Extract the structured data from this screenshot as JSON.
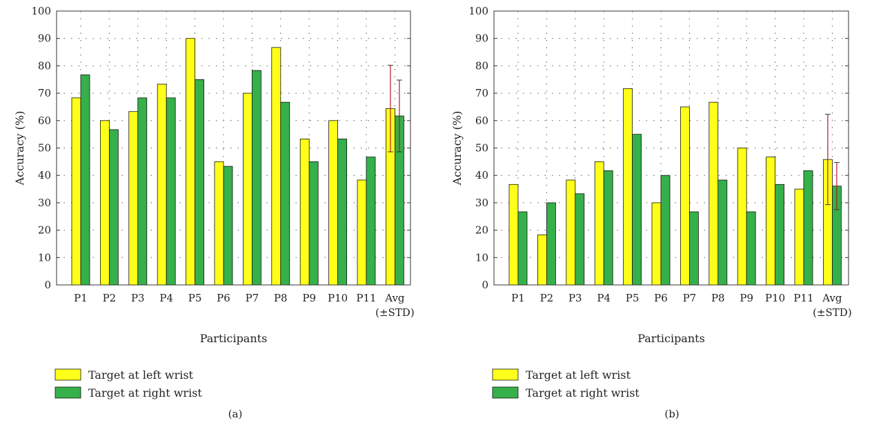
{
  "colors": {
    "left_wrist": "#ffff1a",
    "right_wrist": "#36b04a",
    "bar_stroke": "#111111",
    "error_bar": "#b0182a",
    "grid": "#555555"
  },
  "chart_data": [
    {
      "type": "bar",
      "panel_label": "(a)",
      "xlabel": "Participants",
      "ylabel": "Accuracy (%)",
      "ylim": [
        0,
        100
      ],
      "yticks": [
        0,
        10,
        20,
        30,
        40,
        50,
        60,
        70,
        80,
        90,
        100
      ],
      "grid": true,
      "grid_style": "dotted",
      "legend_position": "bottom-left",
      "categories": [
        [
          "P1"
        ],
        [
          "P2"
        ],
        [
          "P3"
        ],
        [
          "P4"
        ],
        [
          "P5"
        ],
        [
          "P6"
        ],
        [
          "P7"
        ],
        [
          "P8"
        ],
        [
          "P9"
        ],
        [
          "P10"
        ],
        [
          "P11"
        ],
        [
          "Avg",
          "(±STD)"
        ]
      ],
      "series": [
        {
          "name": "Target at left wrist",
          "color_key": "left_wrist",
          "values": [
            68.3,
            60,
            63.3,
            73.3,
            90,
            45,
            70,
            86.7,
            53.3,
            60,
            38.3,
            64.4
          ],
          "error": [
            null,
            null,
            null,
            null,
            null,
            null,
            null,
            null,
            null,
            null,
            null,
            15.8
          ]
        },
        {
          "name": "Target at right wrist",
          "color_key": "right_wrist",
          "values": [
            76.7,
            56.7,
            68.3,
            68.3,
            75,
            43.3,
            78.3,
            66.7,
            45,
            53.3,
            46.7,
            61.7
          ],
          "error": [
            null,
            null,
            null,
            null,
            null,
            null,
            null,
            null,
            null,
            null,
            null,
            13.1
          ]
        }
      ]
    },
    {
      "type": "bar",
      "panel_label": "(b)",
      "xlabel": "Participants",
      "ylabel": "Accuracy (%)",
      "ylim": [
        0,
        100
      ],
      "yticks": [
        0,
        10,
        20,
        30,
        40,
        50,
        60,
        70,
        80,
        90,
        100
      ],
      "grid": true,
      "grid_style": "dotted",
      "legend_position": "bottom-left",
      "categories": [
        [
          "P1"
        ],
        [
          "P2"
        ],
        [
          "P3"
        ],
        [
          "P4"
        ],
        [
          "P5"
        ],
        [
          "P6"
        ],
        [
          "P7"
        ],
        [
          "P8"
        ],
        [
          "P9"
        ],
        [
          "P10"
        ],
        [
          "P11"
        ],
        [
          "Avg",
          "(±STD)"
        ]
      ],
      "series": [
        {
          "name": "Target at left wrist",
          "color_key": "left_wrist",
          "values": [
            36.7,
            18.3,
            38.3,
            45,
            71.7,
            30,
            65,
            66.7,
            50,
            46.7,
            35,
            45.8
          ],
          "error": [
            null,
            null,
            null,
            null,
            null,
            null,
            null,
            null,
            null,
            null,
            null,
            16.5
          ]
        },
        {
          "name": "Target at right wrist",
          "color_key": "right_wrist",
          "values": [
            26.7,
            30,
            33.3,
            41.7,
            55,
            40,
            26.7,
            38.3,
            26.7,
            36.7,
            41.7,
            36.1
          ],
          "error": [
            null,
            null,
            null,
            null,
            null,
            null,
            null,
            null,
            null,
            null,
            null,
            8.6
          ]
        }
      ]
    }
  ]
}
